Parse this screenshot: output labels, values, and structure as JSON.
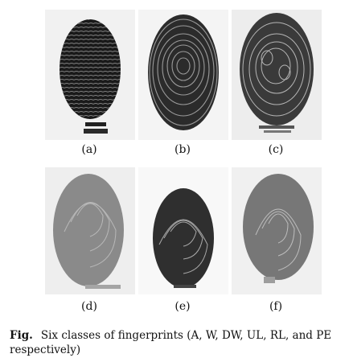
{
  "figure": {
    "panels": [
      {
        "label": "(a)",
        "class": "A"
      },
      {
        "label": "(b)",
        "class": "W"
      },
      {
        "label": "(c)",
        "class": "DW"
      },
      {
        "label": "(d)",
        "class": "UL"
      },
      {
        "label": "(e)",
        "class": "RL"
      },
      {
        "label": "(f)",
        "class": "PE"
      }
    ],
    "caption_label": "Fig.",
    "caption_text": "Six classes of fingerprints (A, W, DW, UL, RL, and PE respectively)"
  }
}
